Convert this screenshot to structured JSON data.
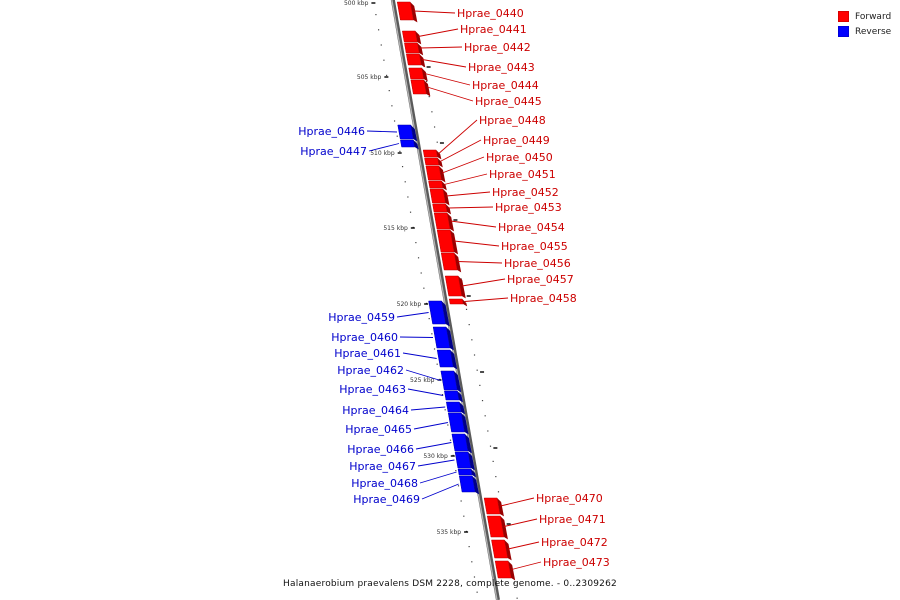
{
  "caption": "Halanaerobium praevalens DSM 2228, complete genome. - 0..2309262",
  "legend": [
    {
      "label": "Forward",
      "color": "#ff0000"
    },
    {
      "label": "Reverse",
      "color": "#0000ff"
    }
  ],
  "colors": {
    "forward": "#ff0000",
    "reverse": "#0000ff",
    "forward_text": "#cc0000",
    "reverse_text": "#0000cc",
    "backbone": "#808080"
  },
  "ticks": [
    "500 kbp",
    "505 kbp",
    "510 kbp",
    "515 kbp",
    "520 kbp",
    "525 kbp",
    "530 kbp",
    "535 kbp"
  ],
  "genes": [
    {
      "name": "Hprae_0440",
      "strand": "forward"
    },
    {
      "name": "Hprae_0441",
      "strand": "forward"
    },
    {
      "name": "Hprae_0442",
      "strand": "forward"
    },
    {
      "name": "Hprae_0443",
      "strand": "forward"
    },
    {
      "name": "Hprae_0444",
      "strand": "forward"
    },
    {
      "name": "Hprae_0445",
      "strand": "forward"
    },
    {
      "name": "Hprae_0446",
      "strand": "reverse"
    },
    {
      "name": "Hprae_0447",
      "strand": "reverse"
    },
    {
      "name": "Hprae_0448",
      "strand": "forward"
    },
    {
      "name": "Hprae_0449",
      "strand": "forward"
    },
    {
      "name": "Hprae_0450",
      "strand": "forward"
    },
    {
      "name": "Hprae_0451",
      "strand": "forward"
    },
    {
      "name": "Hprae_0452",
      "strand": "forward"
    },
    {
      "name": "Hprae_0453",
      "strand": "forward"
    },
    {
      "name": "Hprae_0454",
      "strand": "forward"
    },
    {
      "name": "Hprae_0455",
      "strand": "forward"
    },
    {
      "name": "Hprae_0456",
      "strand": "forward"
    },
    {
      "name": "Hprae_0457",
      "strand": "forward"
    },
    {
      "name": "Hprae_0458",
      "strand": "forward"
    },
    {
      "name": "Hprae_0459",
      "strand": "reverse"
    },
    {
      "name": "Hprae_0460",
      "strand": "reverse"
    },
    {
      "name": "Hprae_0461",
      "strand": "reverse"
    },
    {
      "name": "Hprae_0462",
      "strand": "reverse"
    },
    {
      "name": "Hprae_0463",
      "strand": "reverse"
    },
    {
      "name": "Hprae_0464",
      "strand": "reverse"
    },
    {
      "name": "Hprae_0465",
      "strand": "reverse"
    },
    {
      "name": "Hprae_0466",
      "strand": "reverse"
    },
    {
      "name": "Hprae_0467",
      "strand": "reverse"
    },
    {
      "name": "Hprae_0468",
      "strand": "reverse"
    },
    {
      "name": "Hprae_0469",
      "strand": "reverse"
    },
    {
      "name": "Hprae_0470",
      "strand": "forward"
    },
    {
      "name": "Hprae_0471",
      "strand": "forward"
    },
    {
      "name": "Hprae_0472",
      "strand": "forward"
    },
    {
      "name": "Hprae_0473",
      "strand": "forward"
    }
  ]
}
